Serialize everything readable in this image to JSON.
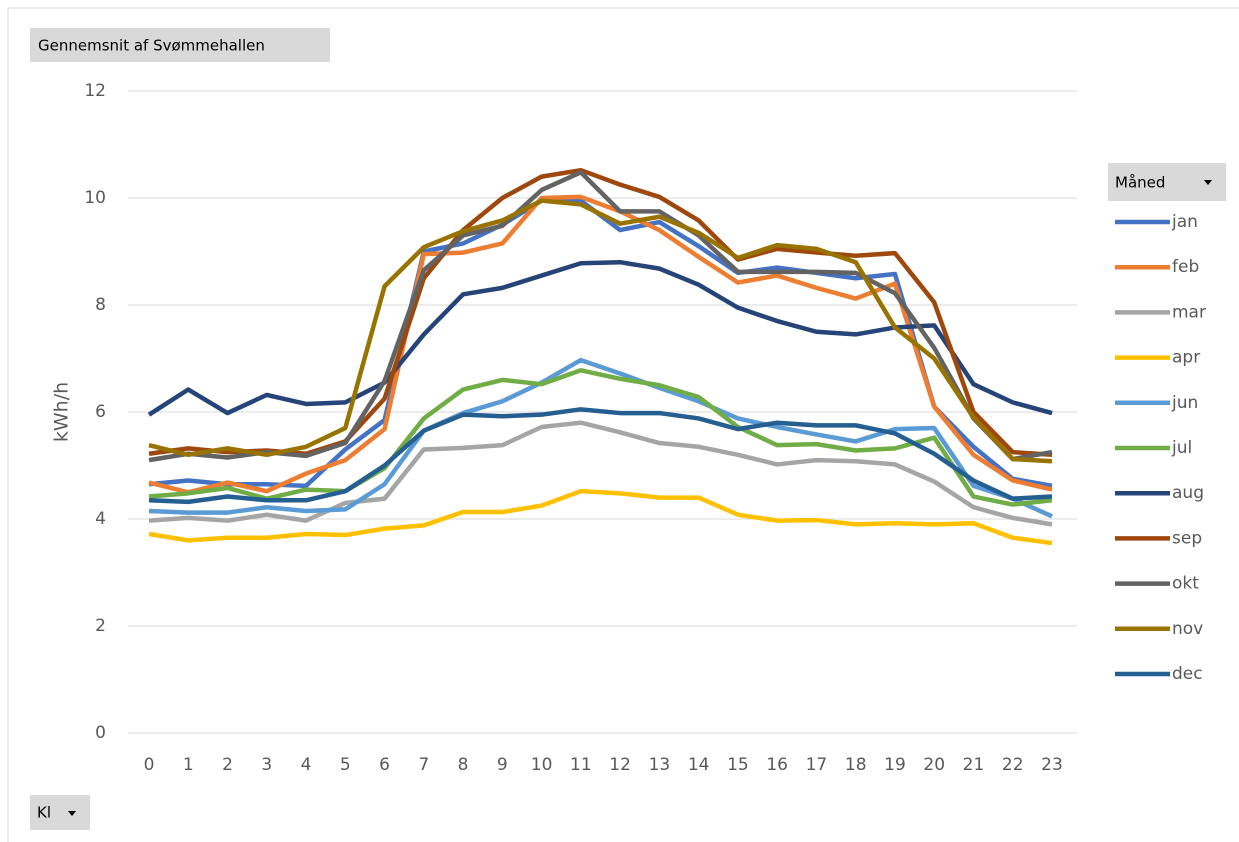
{
  "chart_data": {
    "type": "line",
    "title": "Gennemsnit af Svømmehallen",
    "y_label": "kWh/h",
    "x_label": "Kl",
    "legend_title": "Måned",
    "legend": "right",
    "grid": true,
    "categories": [
      "0",
      "1",
      "2",
      "3",
      "4",
      "5",
      "6",
      "7",
      "8",
      "9",
      "10",
      "11",
      "12",
      "13",
      "14",
      "15",
      "16",
      "17",
      "18",
      "19",
      "20",
      "21",
      "22",
      "23"
    ],
    "ylim": [
      0,
      12
    ],
    "yticks": [
      0,
      2,
      4,
      6,
      8,
      10,
      12
    ],
    "series": [
      {
        "name": "jan",
        "color": "#4472c4",
        "values": [
          4.65,
          4.72,
          4.65,
          4.65,
          4.62,
          5.3,
          5.85,
          9.0,
          9.15,
          9.5,
          9.95,
          9.95,
          9.4,
          9.55,
          9.1,
          8.6,
          8.7,
          8.6,
          8.5,
          8.58,
          6.1,
          5.35,
          4.75,
          4.62
        ]
      },
      {
        "name": "feb",
        "color": "#ed7d31",
        "values": [
          4.68,
          4.5,
          4.68,
          4.52,
          4.85,
          5.1,
          5.68,
          8.95,
          8.98,
          9.15,
          10.0,
          10.02,
          9.75,
          9.4,
          8.9,
          8.42,
          8.55,
          8.32,
          8.12,
          8.4,
          6.1,
          5.2,
          4.72,
          4.55
        ]
      },
      {
        "name": "mar",
        "color": "#a5a5a5",
        "values": [
          3.97,
          4.02,
          3.97,
          4.08,
          3.97,
          4.3,
          4.38,
          5.3,
          5.33,
          5.38,
          5.72,
          5.8,
          5.62,
          5.42,
          5.35,
          5.2,
          5.02,
          5.1,
          5.08,
          5.02,
          4.7,
          4.22,
          4.02,
          3.9
        ]
      },
      {
        "name": "apr",
        "color": "#ffc000",
        "values": [
          3.72,
          3.6,
          3.65,
          3.65,
          3.72,
          3.7,
          3.82,
          3.88,
          4.13,
          4.13,
          4.25,
          4.52,
          4.48,
          4.4,
          4.4,
          4.08,
          3.97,
          3.98,
          3.9,
          3.92,
          3.9,
          3.92,
          3.65,
          3.55
        ]
      },
      {
        "name": "jun",
        "color": "#5b9bd5",
        "values": [
          4.15,
          4.12,
          4.12,
          4.22,
          4.15,
          4.18,
          4.65,
          5.65,
          5.98,
          6.2,
          6.55,
          6.97,
          6.72,
          6.45,
          6.2,
          5.88,
          5.72,
          5.58,
          5.45,
          5.68,
          5.7,
          4.62,
          4.38,
          4.05
        ]
      },
      {
        "name": "jul",
        "color": "#70ad47",
        "values": [
          4.42,
          4.48,
          4.58,
          4.38,
          4.55,
          4.52,
          4.95,
          5.88,
          6.42,
          6.6,
          6.52,
          6.78,
          6.62,
          6.5,
          6.28,
          5.72,
          5.38,
          5.4,
          5.28,
          5.32,
          5.52,
          4.42,
          4.27,
          4.35
        ]
      },
      {
        "name": "aug",
        "color": "#264478",
        "values": [
          5.95,
          6.42,
          5.98,
          6.32,
          6.15,
          6.18,
          6.55,
          7.45,
          8.2,
          8.32,
          8.55,
          8.78,
          8.8,
          8.68,
          8.38,
          7.95,
          7.7,
          7.5,
          7.45,
          7.58,
          7.62,
          6.52,
          6.18,
          5.98
        ]
      },
      {
        "name": "sep",
        "color": "#9e480e",
        "values": [
          5.22,
          5.32,
          5.25,
          5.28,
          5.22,
          5.45,
          6.25,
          8.5,
          9.4,
          10.0,
          10.4,
          10.52,
          10.25,
          10.02,
          9.58,
          8.85,
          9.05,
          8.98,
          8.92,
          8.97,
          8.05,
          6.0,
          5.25,
          5.2
        ]
      },
      {
        "name": "okt",
        "color": "#636363",
        "values": [
          5.1,
          5.22,
          5.15,
          5.25,
          5.18,
          5.42,
          6.58,
          8.65,
          9.3,
          9.48,
          10.15,
          10.48,
          9.75,
          9.75,
          9.3,
          8.62,
          8.62,
          8.62,
          8.6,
          8.22,
          7.2,
          5.88,
          5.12,
          5.25
        ]
      },
      {
        "name": "nov",
        "color": "#997300",
        "values": [
          5.38,
          5.2,
          5.32,
          5.2,
          5.35,
          5.7,
          8.35,
          9.08,
          9.38,
          9.58,
          9.95,
          9.88,
          9.52,
          9.65,
          9.35,
          8.88,
          9.12,
          9.05,
          8.8,
          7.58,
          7.0,
          5.9,
          5.12,
          5.08
        ]
      },
      {
        "name": "dec",
        "color": "#255e91",
        "values": [
          4.35,
          4.32,
          4.42,
          4.35,
          4.35,
          4.52,
          5.0,
          5.65,
          5.95,
          5.92,
          5.95,
          6.05,
          5.98,
          5.98,
          5.88,
          5.68,
          5.8,
          5.75,
          5.75,
          5.6,
          5.22,
          4.72,
          4.38,
          4.42
        ]
      }
    ]
  }
}
